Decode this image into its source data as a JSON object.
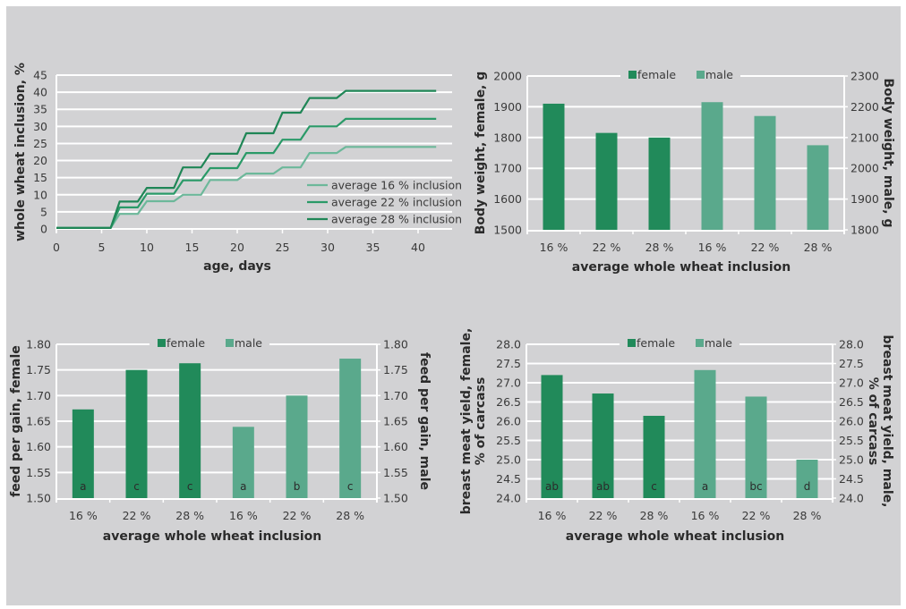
{
  "colors": {
    "background": "#d2d2d4",
    "grid": "#ffffff",
    "female": "#218a5a",
    "male": "#5aa98c",
    "line16": "#6cb89a",
    "line22": "#2a9a68",
    "line28": "#1f8656",
    "text": "#333333"
  },
  "chart_data": [
    {
      "id": "inclusion",
      "type": "line",
      "title": "",
      "xlabel": "age, days",
      "ylabel": "whole wheat inclusion, %",
      "xlim": [
        0,
        42
      ],
      "ylim": [
        0,
        45
      ],
      "xticks": [
        0,
        5,
        10,
        15,
        20,
        25,
        30,
        35,
        40
      ],
      "yticks": [
        0,
        5,
        10,
        15,
        20,
        25,
        30,
        35,
        40,
        45
      ],
      "grid": true,
      "legend_position": "bottom-right",
      "series": [
        {
          "name": "average 16 % inclusion",
          "color_key": "line16",
          "x": [
            0,
            6,
            7,
            9,
            10,
            13,
            14,
            16,
            17,
            20,
            21,
            24,
            25,
            27,
            28,
            31,
            32,
            42
          ],
          "y": [
            0.3,
            0.3,
            4.4,
            4.4,
            8.1,
            8.1,
            10,
            10,
            14.3,
            14.3,
            16.2,
            16.2,
            18,
            18,
            22.2,
            22.2,
            24,
            24
          ]
        },
        {
          "name": "average 22 % inclusion",
          "color_key": "line22",
          "x": [
            0,
            6,
            7,
            9,
            10,
            13,
            14,
            16,
            17,
            20,
            21,
            24,
            25,
            27,
            28,
            31,
            32,
            42
          ],
          "y": [
            0.3,
            0.3,
            6.3,
            6.3,
            10.3,
            10.3,
            14.2,
            14.2,
            17.8,
            17.8,
            22.2,
            22.2,
            26.1,
            26.1,
            30,
            30,
            32.2,
            32.2
          ]
        },
        {
          "name": "average 28 % inclusion",
          "color_key": "line28",
          "x": [
            0,
            6,
            7,
            9,
            10,
            13,
            14,
            16,
            17,
            20,
            21,
            24,
            25,
            27,
            28,
            31,
            32,
            42
          ],
          "y": [
            0.3,
            0.3,
            8,
            8,
            12,
            12,
            18,
            18,
            22,
            22,
            28,
            28,
            34,
            34,
            38.3,
            38.3,
            40.4,
            40.4
          ]
        }
      ]
    },
    {
      "id": "bodyweight",
      "type": "bar",
      "xlabel": "average whole wheat inclusion",
      "ylabel": "Body weight, female, g",
      "ylabel_right": "Body weight, male, g",
      "categories": [
        "16 %",
        "22 %",
        "28 %",
        "16 %",
        "22 %",
        "28 %"
      ],
      "ylim": [
        1500,
        2000
      ],
      "ylim_right": [
        1800,
        2300
      ],
      "yticks": [
        "1500",
        "1600",
        "1700",
        "1800",
        "1900",
        "2000"
      ],
      "yticks_right": [
        "1800",
        "1900",
        "2000",
        "2100",
        "2200",
        "2300"
      ],
      "legend": [
        "female",
        "male"
      ],
      "legend_position": "top",
      "series": [
        {
          "name": "female",
          "axis": "left",
          "values": [
            1910,
            1815,
            1800
          ]
        },
        {
          "name": "male",
          "axis": "right",
          "values": [
            2215,
            2170,
            2075
          ]
        }
      ],
      "letters": []
    },
    {
      "id": "feedgain",
      "type": "bar",
      "xlabel": "average whole wheat inclusion",
      "ylabel": "feed per gain, female",
      "ylabel_right": "feed per gain, male",
      "categories": [
        "16 %",
        "22 %",
        "28 %",
        "16 %",
        "22 %",
        "28 %"
      ],
      "ylim": [
        1.5,
        1.8
      ],
      "ylim_right": [
        1.5,
        1.8
      ],
      "yticks": [
        "1.50",
        "1.55",
        "1.60",
        "1.65",
        "1.70",
        "1.75",
        "1.80"
      ],
      "yticks_right": [
        "1.50",
        "1.55",
        "1.60",
        "1.65",
        "1.70",
        "1.75",
        "1.80"
      ],
      "legend": [
        "female",
        "male"
      ],
      "legend_position": "top",
      "series": [
        {
          "name": "female",
          "axis": "left",
          "values": [
            1.673,
            1.75,
            1.763
          ]
        },
        {
          "name": "male",
          "axis": "right",
          "values": [
            1.639,
            1.7,
            1.772
          ]
        }
      ],
      "letters": [
        "a",
        "c",
        "c",
        "a",
        "b",
        "c"
      ]
    },
    {
      "id": "breastmeat",
      "type": "bar",
      "xlabel": "average whole wheat inclusion",
      "ylabel": [
        "breast meat yield, female,",
        "% of carcass"
      ],
      "ylabel_right": [
        "breast meat yield, male,",
        "% of carcass"
      ],
      "categories": [
        "16 %",
        "22 %",
        "28 %",
        "16 %",
        "22 %",
        "28 %"
      ],
      "ylim": [
        24.0,
        28.0
      ],
      "ylim_right": [
        24.0,
        28.0
      ],
      "yticks": [
        "24.0",
        "24.5",
        "25.0",
        "25.5",
        "26.0",
        "26.5",
        "27.0",
        "27.5",
        "28.0"
      ],
      "yticks_right": [
        "24.0",
        "24.5",
        "25.0",
        "25.5",
        "26.0",
        "26.5",
        "27.0",
        "27.5",
        "28.0"
      ],
      "legend": [
        "female",
        "male"
      ],
      "legend_position": "top",
      "series": [
        {
          "name": "female",
          "axis": "left",
          "values": [
            27.2,
            26.72,
            26.14
          ]
        },
        {
          "name": "male",
          "axis": "right",
          "values": [
            27.33,
            26.64,
            25.0
          ]
        }
      ],
      "letters": [
        "ab",
        "ab",
        "c",
        "a",
        "bc",
        "d"
      ]
    }
  ]
}
